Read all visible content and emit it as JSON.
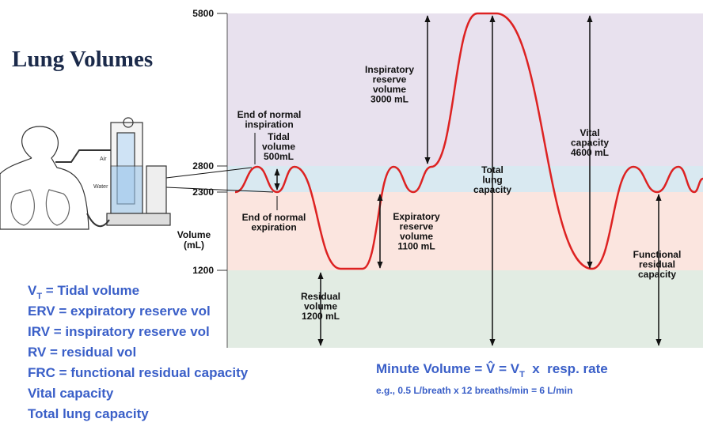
{
  "header": {
    "title": "Lung Volumes"
  },
  "y_axis": {
    "title": [
      "Volume",
      "(mL)"
    ],
    "ticks": [
      5800,
      2800,
      2300,
      1200
    ]
  },
  "annotations": {
    "end_inspiration": [
      "End of normal",
      "inspiration"
    ],
    "tidal_volume": [
      "Tidal",
      "volume",
      "500mL"
    ],
    "end_expiration": [
      "End of normal",
      "expiration"
    ],
    "inspiratory_reserve": [
      "Inspiratory",
      "reserve",
      "volume",
      "3000 mL"
    ],
    "total_lung_capacity": [
      "Total",
      "lung",
      "capacity"
    ],
    "vital_capacity": [
      "Vital",
      "capacity",
      "4600 mL"
    ],
    "expiratory_reserve": [
      "Expiratory",
      "reserve",
      "volume",
      "1100 mL"
    ],
    "functional_residual": [
      "Functional",
      "residual",
      "capacity"
    ],
    "residual_volume": [
      "Residual",
      "volume",
      "1200 mL"
    ]
  },
  "illustration": {
    "air": "Air",
    "water": "Water"
  },
  "abbreviations": [
    {
      "text": "V",
      "sub": "T",
      "rest": " = Tidal volume"
    },
    {
      "text": "ERV = expiratory reserve vol"
    },
    {
      "text": "IRV = inspiratory reserve vol"
    },
    {
      "text": "RV = residual vol"
    },
    {
      "text": "FRC = functional residual capacity"
    },
    {
      "text": "Vital capacity"
    },
    {
      "text": "Total lung capacity"
    }
  ],
  "formula": {
    "lead": "Minute Volume = ",
    "symbol": "V̂",
    "mid": " = V",
    "sub": "T",
    "tail": "  x  resp. rate",
    "example": "e.g., 0.5 L/breath x 12 breaths/min = 6 L/min"
  }
}
